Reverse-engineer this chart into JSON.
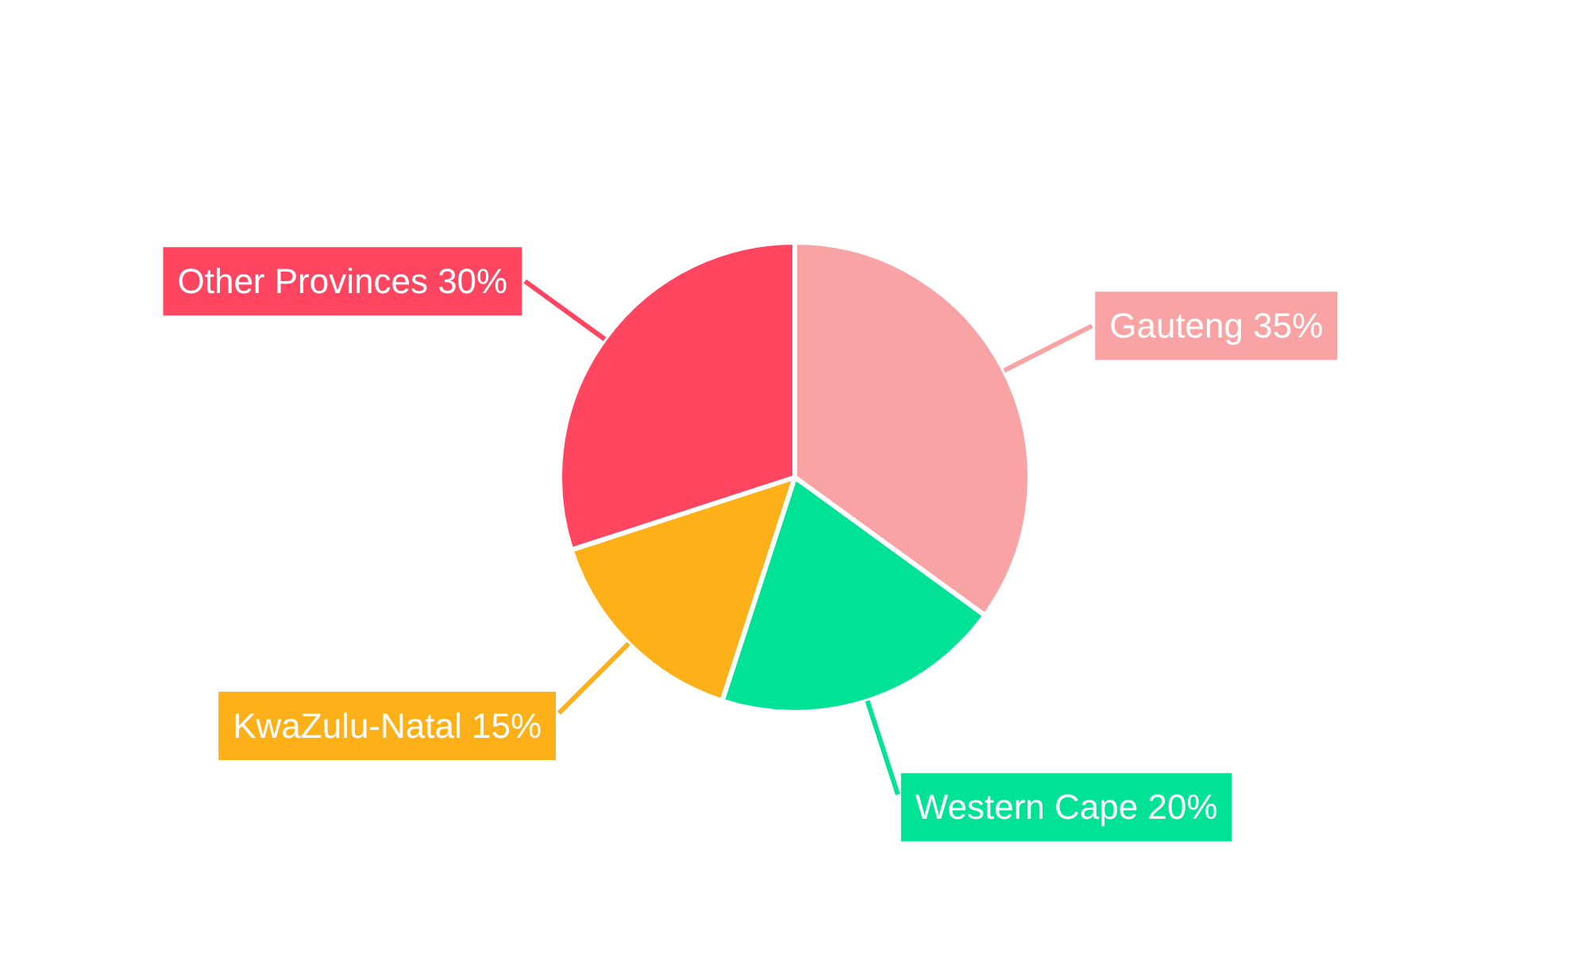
{
  "chart_data": {
    "type": "pie",
    "categories": [
      "Gauteng",
      "Western Cape",
      "KwaZulu-Natal",
      "Other Provinces"
    ],
    "values": [
      35,
      20,
      15,
      30
    ],
    "colors": [
      "#f9a3a4",
      "#00e396",
      "#feb019",
      "#ff4560"
    ],
    "value_labels": [
      "35%",
      "20%",
      "15%",
      "30%"
    ]
  }
}
